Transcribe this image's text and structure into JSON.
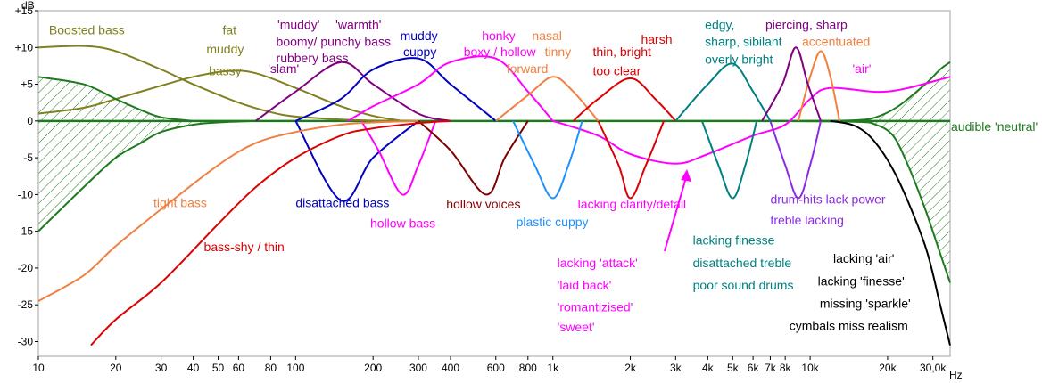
{
  "chart_data": {
    "type": "line",
    "title": "",
    "xlabel": "Hz",
    "ylabel": "dB",
    "x_scale": "log",
    "xlim": [
      10,
      35000
    ],
    "ylim": [
      -32,
      15
    ],
    "grid": false,
    "x_ticks": [
      {
        "v": 10,
        "label": "10"
      },
      {
        "v": 20,
        "label": "20"
      },
      {
        "v": 30,
        "label": "30"
      },
      {
        "v": 40,
        "label": "40"
      },
      {
        "v": 50,
        "label": "50"
      },
      {
        "v": 60,
        "label": "60"
      },
      {
        "v": 80,
        "label": "80"
      },
      {
        "v": 100,
        "label": "100"
      },
      {
        "v": 200,
        "label": "200"
      },
      {
        "v": 300,
        "label": "300"
      },
      {
        "v": 400,
        "label": "400"
      },
      {
        "v": 600,
        "label": "600"
      },
      {
        "v": 800,
        "label": "800"
      },
      {
        "v": 1000,
        "label": "1k"
      },
      {
        "v": 2000,
        "label": "2k"
      },
      {
        "v": 3000,
        "label": "3k"
      },
      {
        "v": 4000,
        "label": "4k"
      },
      {
        "v": 5000,
        "label": "5k"
      },
      {
        "v": 6000,
        "label": "6k"
      },
      {
        "v": 7000,
        "label": "7k"
      },
      {
        "v": 8000,
        "label": "8k"
      },
      {
        "v": 10000,
        "label": "10k"
      },
      {
        "v": 20000,
        "label": "20k"
      },
      {
        "v": 30000,
        "label": "30,0k"
      }
    ],
    "y_ticks": [
      {
        "v": 15,
        "label": "+15"
      },
      {
        "v": 10,
        "label": "+10"
      },
      {
        "v": 5,
        "label": "+5"
      },
      {
        "v": 0,
        "label": "0"
      },
      {
        "v": -5,
        "label": "-5"
      },
      {
        "v": -10,
        "label": "-10"
      },
      {
        "v": -15,
        "label": "-15"
      },
      {
        "v": -20,
        "label": "-20"
      },
      {
        "v": -25,
        "label": "-25"
      },
      {
        "v": -30,
        "label": "-30"
      }
    ],
    "neutral_label": "audible 'neutral'",
    "series": [
      {
        "color": "#808020",
        "x": [
          10,
          15,
          20,
          30,
          40,
          60,
          80,
          100,
          150,
          200,
          250
        ],
        "y": [
          10,
          10.2,
          9.5,
          7,
          5,
          2.5,
          1.2,
          0.6,
          0.2,
          0.05,
          0
        ]
      },
      {
        "color": "#808020",
        "x": [
          10,
          15,
          20,
          30,
          40,
          55,
          70,
          100,
          150,
          200,
          260
        ],
        "y": [
          1,
          1.8,
          3,
          4.8,
          6,
          6.8,
          6.5,
          4.5,
          2,
          0.7,
          0
        ]
      },
      {
        "color": "#1e7a1e",
        "x": [
          10,
          15,
          20,
          25,
          30,
          40
        ],
        "y": [
          6,
          5,
          3,
          1.5,
          0.5,
          0
        ]
      },
      {
        "color": "#1e7a1e",
        "x": [
          10,
          15,
          20,
          25,
          30,
          40,
          50,
          70
        ],
        "y": [
          -15,
          -9,
          -5,
          -3,
          -1.5,
          -0.5,
          -0.2,
          0
        ]
      },
      {
        "color": "#1e7a1e",
        "x": [
          7000,
          10000,
          15000,
          18000,
          22000,
          28000,
          32000,
          35000
        ],
        "y": [
          0,
          0,
          0.1,
          0.5,
          2,
          5,
          7,
          8
        ]
      },
      {
        "color": "#1e7a1e",
        "x": [
          7000,
          15000,
          18000,
          21000,
          24000,
          28000,
          32000,
          35000
        ],
        "y": [
          0,
          -0.1,
          -0.5,
          -2,
          -6,
          -12,
          -18,
          -22
        ]
      },
      {
        "color": "#800080",
        "x": [
          70,
          100,
          150,
          200,
          300,
          400
        ],
        "y": [
          0,
          4,
          8,
          5,
          1,
          0
        ]
      },
      {
        "color": "#0000c0",
        "x": [
          100,
          150,
          200,
          300,
          400,
          600
        ],
        "y": [
          0,
          3,
          7,
          8.5,
          5,
          0
        ]
      },
      {
        "color": "#0000c0",
        "x": [
          100,
          150,
          200,
          300
        ],
        "y": [
          0,
          -10.8,
          -5,
          0
        ]
      },
      {
        "color": "#ff00ff",
        "x": [
          160,
          200,
          300,
          400,
          600,
          800,
          1000
        ],
        "y": [
          0,
          2,
          5,
          8,
          8.5,
          4,
          0
        ]
      },
      {
        "color": "#ff00ff",
        "x": [
          180,
          210,
          260,
          300,
          350
        ],
        "y": [
          0,
          -4,
          -10,
          -6,
          0
        ]
      },
      {
        "color": "#ff00ff",
        "x": [
          1000,
          1500,
          2000,
          3000,
          4000,
          6000,
          8000,
          10000,
          12000,
          20000,
          35000
        ],
        "y": [
          0,
          -2,
          -4.5,
          -5.8,
          -4.5,
          -2,
          -0.5,
          3,
          4.5,
          4,
          6
        ]
      },
      {
        "color": "#800000",
        "x": [
          300,
          400,
          550,
          650,
          800
        ],
        "y": [
          0,
          -4,
          -10,
          -5,
          0
        ]
      },
      {
        "color": "#f08040",
        "x": [
          10,
          15,
          20,
          30,
          50,
          70,
          100,
          150,
          200,
          300
        ],
        "y": [
          -24.5,
          -21,
          -17,
          -12,
          -6,
          -3,
          -1.5,
          -0.5,
          -0.2,
          0
        ]
      },
      {
        "color": "#f08040",
        "x": [
          600,
          800,
          1000,
          1200,
          1500
        ],
        "y": [
          0,
          3.5,
          6,
          4,
          0
        ]
      },
      {
        "color": "#f08040",
        "x": [
          9000,
          10000,
          11000,
          12000,
          13000
        ],
        "y": [
          0,
          6,
          9.5,
          6,
          0
        ]
      },
      {
        "color": "#dd0000",
        "x": [
          16,
          20,
          30,
          50,
          70,
          100,
          150,
          200,
          300,
          400
        ],
        "y": [
          -30.5,
          -27,
          -22,
          -14,
          -9,
          -5,
          -2,
          -1,
          -0.3,
          0
        ]
      },
      {
        "color": "#dd0000",
        "x": [
          1200,
          1500,
          2000,
          2500,
          3000
        ],
        "y": [
          0,
          3,
          5.8,
          3,
          0
        ]
      },
      {
        "color": "#dd0000",
        "x": [
          1500,
          1800,
          2000,
          2300,
          2700
        ],
        "y": [
          0,
          -6,
          -10.5,
          -6,
          0
        ]
      },
      {
        "color": "#1e90ff",
        "x": [
          700,
          850,
          1000,
          1150,
          1300
        ],
        "y": [
          0,
          -6,
          -10.5,
          -6,
          0
        ]
      },
      {
        "color": "#008080",
        "x": [
          3000,
          4000,
          5000,
          6000,
          7000
        ],
        "y": [
          0,
          5,
          7.8,
          4,
          0
        ]
      },
      {
        "color": "#008080",
        "x": [
          3800,
          4400,
          5000,
          5600,
          6200
        ],
        "y": [
          0,
          -6,
          -10.5,
          -6,
          0
        ]
      },
      {
        "color": "#800080",
        "x": [
          6500,
          7800,
          8800,
          9800,
          11000
        ],
        "y": [
          0,
          5,
          10,
          5,
          0
        ]
      },
      {
        "color": "#8a2be2",
        "x": [
          7000,
          8000,
          9000,
          10000,
          11000
        ],
        "y": [
          0,
          -6,
          -10.5,
          -6,
          0
        ]
      },
      {
        "color": "#000000",
        "x": [
          12000,
          15000,
          18000,
          22000,
          28000,
          32000,
          35000
        ],
        "y": [
          0,
          -0.7,
          -3,
          -8,
          -17,
          -25,
          -30.5
        ]
      }
    ],
    "annotations": [
      {
        "text": "Boosted bass",
        "color": "#808020",
        "x": 11,
        "y": 11.8
      },
      {
        "text": "fat",
        "color": "#808020",
        "x": 52,
        "y": 11.8
      },
      {
        "text": "muddy",
        "color": "#808020",
        "x": 45,
        "y": 9.2
      },
      {
        "text": "bassy",
        "color": "#808020",
        "x": 46,
        "y": 6.2
      },
      {
        "text": "'slam'",
        "color": "#800080",
        "x": 78,
        "y": 6.5
      },
      {
        "text": "'muddy'",
        "color": "#800080",
        "x": 85,
        "y": 12.5
      },
      {
        "text": "'warmth'",
        "color": "#800080",
        "x": 143,
        "y": 12.5
      },
      {
        "text": "boomy/ punchy bass",
        "color": "#800080",
        "x": 84,
        "y": 10.2
      },
      {
        "text": "rubbery bass",
        "color": "#800080",
        "x": 84,
        "y": 8
      },
      {
        "text": "muddy",
        "color": "#0000c0",
        "x": 255,
        "y": 11
      },
      {
        "text": "cuppy",
        "color": "#0000c0",
        "x": 262,
        "y": 8.8
      },
      {
        "text": "honky",
        "color": "#ff00ff",
        "x": 530,
        "y": 11
      },
      {
        "text": "boxy / hollow",
        "color": "#ff00ff",
        "x": 450,
        "y": 8.8
      },
      {
        "text": "nasal",
        "color": "#f08040",
        "x": 830,
        "y": 11
      },
      {
        "text": "tinny",
        "color": "#f08040",
        "x": 930,
        "y": 8.8
      },
      {
        "text": "forward",
        "color": "#f08040",
        "x": 660,
        "y": 6.5
      },
      {
        "text": "harsh",
        "color": "#dd0000",
        "x": 2200,
        "y": 10.5
      },
      {
        "text": "thin, bright",
        "color": "#dd0000",
        "x": 1430,
        "y": 8.8
      },
      {
        "text": "too clear",
        "color": "#dd0000",
        "x": 1430,
        "y": 6.2
      },
      {
        "text": "edgy,",
        "color": "#008080",
        "x": 3900,
        "y": 12.5
      },
      {
        "text": "sharp, sibilant",
        "color": "#008080",
        "x": 3900,
        "y": 10.2
      },
      {
        "text": "overly bright",
        "color": "#008080",
        "x": 3900,
        "y": 7.8
      },
      {
        "text": "piercing, sharp",
        "color": "#800080",
        "x": 6700,
        "y": 12.5
      },
      {
        "text": "accentuated",
        "color": "#f08040",
        "x": 9300,
        "y": 10.2
      },
      {
        "text": "'air'",
        "color": "#ff00ff",
        "x": 14600,
        "y": 6.5
      },
      {
        "text": "tight bass",
        "color": "#f08040",
        "x": 28,
        "y": -11.7
      },
      {
        "text": "bass-shy / thin",
        "color": "#dd0000",
        "x": 44,
        "y": -17.7
      },
      {
        "text": "disattached bass",
        "color": "#0000c0",
        "x": 100,
        "y": -11.7
      },
      {
        "text": "hollow bass",
        "color": "#ff00ff",
        "x": 195,
        "y": -14.5
      },
      {
        "text": "hollow voices",
        "color": "#800000",
        "x": 385,
        "y": -11.9
      },
      {
        "text": "plastic cuppy",
        "color": "#1e90ff",
        "x": 720,
        "y": -14.3
      },
      {
        "text": "lacking clarity/detail",
        "color": "#ff00ff",
        "x": 1250,
        "y": -11.9
      },
      {
        "text": "lacking 'attack'",
        "color": "#ff00ff",
        "x": 1040,
        "y": -19.9
      },
      {
        "text": "'laid back'",
        "color": "#ff00ff",
        "x": 1040,
        "y": -22.9
      },
      {
        "text": "'romantizised'",
        "color": "#ff00ff",
        "x": 1040,
        "y": -25.9
      },
      {
        "text": "'sweet'",
        "color": "#ff00ff",
        "x": 1040,
        "y": -28.6
      },
      {
        "text": "lacking finesse",
        "color": "#008080",
        "x": 3500,
        "y": -16.8
      },
      {
        "text": "disattached treble",
        "color": "#008080",
        "x": 3500,
        "y": -19.9
      },
      {
        "text": "poor sound drums",
        "color": "#008080",
        "x": 3500,
        "y": -22.9
      },
      {
        "text": "drum-hits lack power",
        "color": "#8a2be2",
        "x": 7000,
        "y": -11.2
      },
      {
        "text": "treble lacking",
        "color": "#8a2be2",
        "x": 7000,
        "y": -14.1
      },
      {
        "text": "lacking 'air'",
        "color": "#000000",
        "x": 12300,
        "y": -19.3
      },
      {
        "text": "lacking 'finesse'",
        "color": "#000000",
        "x": 10700,
        "y": -22.4
      },
      {
        "text": "missing 'sparkle'",
        "color": "#000000",
        "x": 10900,
        "y": -25.4
      },
      {
        "text": "cymbals miss realism",
        "color": "#000000",
        "x": 8300,
        "y": -28.4
      }
    ]
  }
}
